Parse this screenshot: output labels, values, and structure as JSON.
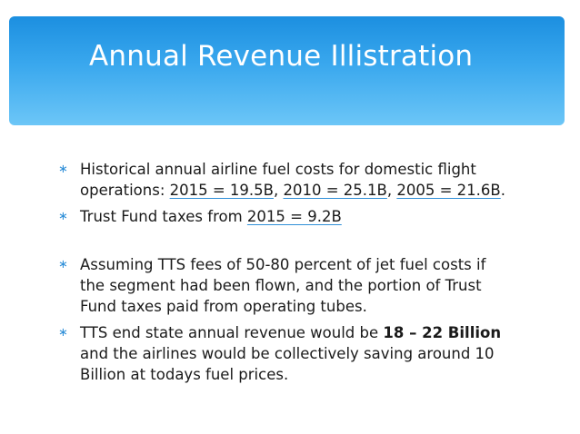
{
  "slide": {
    "title": "Annual Revenue Illistration",
    "bullet_glyph": "∗",
    "bullets": [
      {
        "l1": "Historical annual airline fuel costs for domestic flight",
        "l2_prefix": "operations:  ",
        "link1": "2015 = 19.5B",
        "sep1": ", ",
        "link2": "2010 = 25.1B",
        "sep2": ", ",
        "link3": "2005 = 21.6B",
        "l2_end": "."
      },
      {
        "prefix": "Trust Fund taxes from ",
        "link": "2015 = 9.2B"
      },
      {
        "l1": "Assuming TTS fees of 50-80 percent of jet fuel costs if",
        "l2": "the segment had been flown, and the portion of Trust",
        "l3": "Fund taxes paid from operating tubes."
      },
      {
        "prefix": "TTS end state annual revenue would be ",
        "bold": "18 – 22 Billion",
        "l2": "and the airlines would be collectively saving around 10",
        "l3": "Billion at todays fuel prices."
      }
    ]
  },
  "colors": {
    "title_band_top": "#1c8fe0",
    "title_band_bottom": "#6cc6f7",
    "accent": "#2f8fd8",
    "text": "#1a1a1a"
  }
}
